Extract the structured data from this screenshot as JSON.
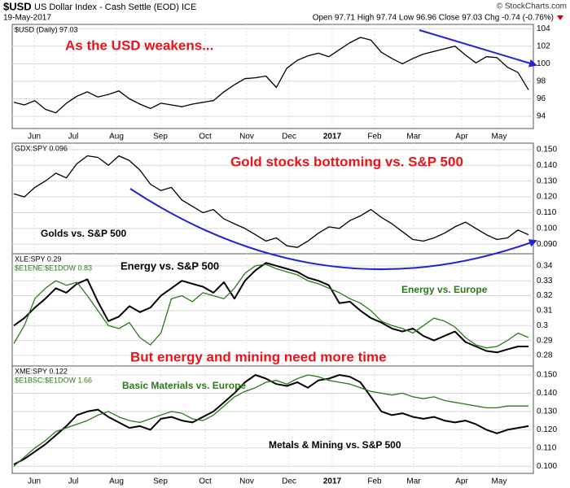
{
  "header": {
    "symbol": "$USD",
    "name": "US Dollar Index - Cash Settle (EOD) ICE",
    "date": "19-May-2017",
    "copyright": "© StockCharts.com",
    "quote": "Open 97.71 High 97.74 Low 96.96 Close 97.03 Chg -0.74 (-0.76%)"
  },
  "x_labels": [
    "Jun",
    "Jul",
    "Aug",
    "Sep",
    "Oct",
    "Nov",
    "Dec",
    "2017",
    "Feb",
    "Mar",
    "Apr",
    "May"
  ],
  "chart_data": [
    {
      "type": "line",
      "ylim": [
        92.8,
        104.3
      ],
      "yticks": [
        94,
        96,
        98,
        100,
        102,
        104
      ],
      "grid": true,
      "annotations": [
        {
          "text": "As the USD weakens...",
          "color": "#e8131b"
        }
      ],
      "series": [
        {
          "name": "$USD (Daily) 97.03",
          "color": "#000000",
          "values": [
            95.6,
            95.3,
            95.8,
            94.8,
            94.4,
            95.5,
            96.3,
            96.8,
            96.2,
            96.5,
            96.9,
            96.0,
            95.4,
            94.9,
            95.5,
            95.3,
            95.1,
            95.4,
            95.6,
            95.8,
            96.8,
            97.6,
            98.3,
            98.4,
            98.6,
            97.3,
            99.5,
            100.4,
            100.9,
            101.2,
            100.8,
            101.6,
            102.4,
            103.0,
            102.7,
            101.3,
            100.6,
            100.0,
            100.6,
            101.1,
            101.4,
            101.7,
            102.0,
            101.0,
            100.1,
            100.8,
            100.7,
            99.6,
            99.0,
            97.03
          ]
        }
      ]
    },
    {
      "type": "line",
      "ylim": [
        0.085,
        0.153
      ],
      "grid": true,
      "yticks": [
        {
          "value": 0.09,
          "label": "0.090"
        },
        {
          "value": 0.1,
          "label": "0.100"
        },
        {
          "value": 0.11,
          "label": "0.110"
        },
        {
          "value": 0.12,
          "label": "0.120"
        },
        {
          "value": 0.13,
          "label": "0.130"
        },
        {
          "value": 0.14,
          "label": "0.140"
        },
        {
          "value": 0.15,
          "label": "0.150"
        }
      ],
      "annotations": [
        {
          "text": "Gold stocks bottoming vs. S&P 500",
          "color": "#e8131b"
        },
        {
          "text": "Golds vs. S&P 500",
          "color": "#000000"
        }
      ],
      "series": [
        {
          "name": "GDX:SPY 0.096",
          "color": "#000000",
          "values": [
            0.122,
            0.12,
            0.126,
            0.13,
            0.135,
            0.132,
            0.141,
            0.146,
            0.145,
            0.14,
            0.146,
            0.143,
            0.137,
            0.128,
            0.124,
            0.126,
            0.118,
            0.114,
            0.11,
            0.112,
            0.106,
            0.103,
            0.1,
            0.096,
            0.092,
            0.094,
            0.089,
            0.088,
            0.092,
            0.097,
            0.101,
            0.1,
            0.105,
            0.108,
            0.112,
            0.107,
            0.103,
            0.098,
            0.093,
            0.092,
            0.094,
            0.097,
            0.101,
            0.104,
            0.1,
            0.096,
            0.093,
            0.094,
            0.099,
            0.096
          ]
        }
      ]
    },
    {
      "type": "line",
      "ylim": [
        0.274,
        0.347
      ],
      "yticks": [
        0.28,
        0.29,
        0.3,
        0.31,
        0.32,
        0.33,
        0.34
      ],
      "grid": true,
      "annotations": [
        {
          "text": "Energy vs. S&P 500",
          "color": "#000000"
        },
        {
          "text": "Energy vs. Europe",
          "color": "#2a7a1a"
        },
        {
          "text": "But energy and mining need more time",
          "color": "#e8131b"
        }
      ],
      "series": [
        {
          "name": "XLE:SPY 0.29",
          "color": "#000000",
          "values": [
            0.3,
            0.305,
            0.312,
            0.318,
            0.325,
            0.322,
            0.328,
            0.331,
            0.316,
            0.303,
            0.306,
            0.313,
            0.309,
            0.312,
            0.32,
            0.325,
            0.33,
            0.328,
            0.326,
            0.322,
            0.329,
            0.318,
            0.33,
            0.337,
            0.342,
            0.34,
            0.338,
            0.336,
            0.332,
            0.33,
            0.327,
            0.315,
            0.316,
            0.31,
            0.305,
            0.302,
            0.298,
            0.296,
            0.298,
            0.293,
            0.29,
            0.293,
            0.296,
            0.289,
            0.286,
            0.283,
            0.282,
            0.284,
            0.286,
            0.286
          ]
        },
        {
          "name": "$E1ENE:$E1DOW 0.83",
          "color": "#2a7a1a",
          "values": [
            0.288,
            0.3,
            0.318,
            0.325,
            0.33,
            0.327,
            0.329,
            0.32,
            0.31,
            0.3,
            0.298,
            0.302,
            0.292,
            0.287,
            0.295,
            0.318,
            0.32,
            0.316,
            0.322,
            0.32,
            0.318,
            0.325,
            0.335,
            0.34,
            0.341,
            0.338,
            0.336,
            0.334,
            0.33,
            0.328,
            0.325,
            0.322,
            0.318,
            0.315,
            0.31,
            0.303,
            0.3,
            0.298,
            0.295,
            0.3,
            0.305,
            0.303,
            0.299,
            0.292,
            0.287,
            0.285,
            0.286,
            0.29,
            0.295,
            0.292
          ]
        }
      ]
    },
    {
      "type": "line",
      "ylim": [
        0.097,
        0.154
      ],
      "grid": true,
      "yticks": [
        {
          "value": 0.1,
          "label": "0.100"
        },
        {
          "value": 0.11,
          "label": "0.110"
        },
        {
          "value": 0.12,
          "label": "0.120"
        },
        {
          "value": 0.13,
          "label": "0.130"
        },
        {
          "value": 0.14,
          "label": "0.140"
        },
        {
          "value": 0.15,
          "label": "0.150"
        }
      ],
      "annotations": [
        {
          "text": "Basic Materials vs. Europe",
          "color": "#2a7a1a"
        },
        {
          "text": "Metals & Mining vs. S&P 500",
          "color": "#000000"
        }
      ],
      "series": [
        {
          "name": "XME:SPY 0.122",
          "color": "#000000",
          "values": [
            0.101,
            0.104,
            0.108,
            0.112,
            0.117,
            0.122,
            0.128,
            0.13,
            0.131,
            0.127,
            0.124,
            0.121,
            0.122,
            0.12,
            0.126,
            0.127,
            0.125,
            0.124,
            0.127,
            0.13,
            0.135,
            0.14,
            0.146,
            0.15,
            0.148,
            0.145,
            0.144,
            0.146,
            0.143,
            0.147,
            0.148,
            0.15,
            0.149,
            0.146,
            0.138,
            0.13,
            0.128,
            0.129,
            0.127,
            0.126,
            0.127,
            0.125,
            0.124,
            0.125,
            0.123,
            0.12,
            0.118,
            0.12,
            0.121,
            0.122
          ]
        },
        {
          "name": "$E1BSC:$E1DOW 1.66",
          "color": "#2a7a1a",
          "values": [
            0.1,
            0.105,
            0.11,
            0.114,
            0.119,
            0.121,
            0.123,
            0.125,
            0.128,
            0.13,
            0.127,
            0.125,
            0.124,
            0.126,
            0.128,
            0.13,
            0.129,
            0.126,
            0.125,
            0.128,
            0.133,
            0.138,
            0.141,
            0.143,
            0.146,
            0.147,
            0.145,
            0.148,
            0.15,
            0.149,
            0.147,
            0.146,
            0.145,
            0.143,
            0.141,
            0.14,
            0.139,
            0.14,
            0.138,
            0.137,
            0.138,
            0.136,
            0.135,
            0.134,
            0.133,
            0.132,
            0.132,
            0.133,
            0.133,
            0.133
          ]
        }
      ]
    }
  ]
}
